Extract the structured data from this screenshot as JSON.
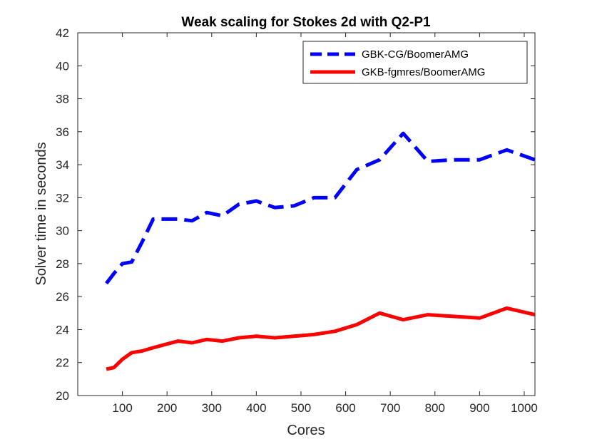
{
  "chart_data": {
    "type": "line",
    "title": "Weak scaling for Stokes 2d with Q2-P1",
    "xlabel": "Cores",
    "ylabel": "Solver time in seconds",
    "xlim": [
      0,
      1024
    ],
    "ylim": [
      20,
      42
    ],
    "xticks": [
      100,
      200,
      300,
      400,
      500,
      600,
      700,
      800,
      900,
      1000
    ],
    "yticks": [
      20,
      22,
      24,
      26,
      28,
      30,
      32,
      34,
      36,
      38,
      40,
      42
    ],
    "legend_position": "top-right",
    "series": [
      {
        "name": "GBK-CG/BoomerAMG",
        "color": "#0000ff",
        "style": "dashed",
        "x": [
          64,
          81,
          100,
          121,
          144,
          169,
          196,
          225,
          256,
          289,
          324,
          361,
          400,
          441,
          484,
          529,
          576,
          625,
          676,
          729,
          784,
          841,
          900,
          961,
          1024
        ],
        "y": [
          26.8,
          27.4,
          28.0,
          28.1,
          29.3,
          30.7,
          30.7,
          30.7,
          30.6,
          31.1,
          30.9,
          31.6,
          31.8,
          31.4,
          31.5,
          32.0,
          32.0,
          33.7,
          34.3,
          35.9,
          34.2,
          34.3,
          34.3,
          34.9,
          34.3
        ]
      },
      {
        "name": "GKB-fgmres/BoomerAMG",
        "color": "#ff0000",
        "style": "solid",
        "x": [
          64,
          81,
          100,
          121,
          144,
          169,
          196,
          225,
          256,
          289,
          324,
          361,
          400,
          441,
          484,
          529,
          576,
          625,
          676,
          729,
          784,
          841,
          900,
          961,
          1024
        ],
        "y": [
          21.6,
          21.7,
          22.2,
          22.6,
          22.7,
          22.9,
          23.1,
          23.3,
          23.2,
          23.4,
          23.3,
          23.5,
          23.6,
          23.5,
          23.6,
          23.7,
          23.9,
          24.3,
          25.0,
          24.6,
          24.9,
          24.8,
          24.7,
          25.3,
          24.9
        ]
      }
    ]
  }
}
